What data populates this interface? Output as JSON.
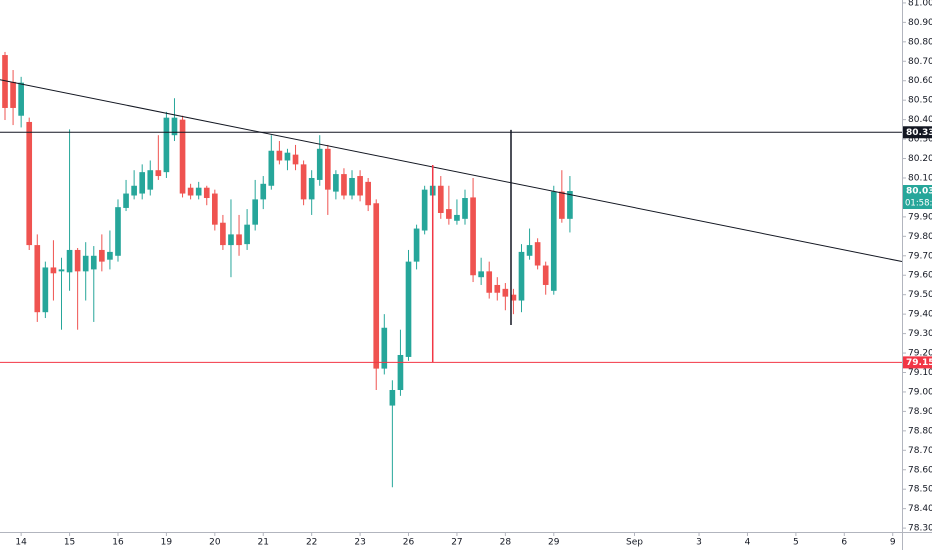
{
  "chart_data": {
    "type": "candlestick",
    "up_color": "#26a69a",
    "down_color": "#ef5350",
    "open": [
      80.732,
      80.594,
      80.42,
      80.388,
      79.755,
      79.41,
      79.64,
      79.62,
      79.615,
      79.73,
      79.62,
      79.63,
      79.73,
      79.68,
      79.7,
      79.946,
      80.01,
      80.02,
      80.04,
      80.14,
      80.13,
      80.32,
      80.4,
      80.05,
      80.01,
      80.05,
      80.02,
      79.87,
      79.755,
      79.81,
      79.76,
      79.86,
      79.99,
      80.06,
      80.24,
      80.19,
      80.22,
      80.17,
      79.99,
      80.09,
      80.25,
      80.03,
      80.12,
      80.01,
      80.11,
      80.08,
      79.97,
      79.12,
      78.93,
      79.01,
      79.18,
      79.67,
      79.83,
      80.01,
      80.06,
      79.94,
      79.88,
      79.89,
      80.0,
      79.59,
      79.62,
      79.55,
      79.53,
      79.5,
      79.47,
      79.7,
      79.77,
      79.65,
      79.52,
      80.03,
      79.89
    ],
    "close": [
      80.46,
      80.46,
      80.59,
      79.755,
      79.41,
      79.64,
      79.61,
      79.63,
      79.73,
      79.62,
      79.7,
      79.7,
      79.67,
      79.72,
      79.95,
      80.02,
      80.06,
      80.13,
      80.14,
      80.11,
      80.41,
      80.41,
      80.02,
      80.01,
      80.05,
      79.997,
      79.86,
      79.755,
      79.81,
      79.755,
      79.86,
      79.99,
      80.07,
      80.24,
      80.19,
      80.23,
      80.17,
      79.99,
      80.1,
      80.25,
      80.04,
      80.12,
      80.01,
      80.1,
      80.01,
      79.96,
      79.12,
      79.33,
      79.01,
      79.19,
      79.67,
      79.84,
      80.04,
      80.06,
      79.92,
      79.89,
      79.91,
      79.997,
      79.6,
      79.62,
      79.51,
      79.51,
      79.49,
      79.47,
      79.72,
      79.755,
      79.65,
      79.55,
      80.03,
      79.89,
      80.033
    ],
    "high": [
      80.748,
      80.655,
      80.62,
      80.41,
      79.81,
      79.67,
      79.78,
      79.69,
      80.35,
      79.74,
      79.77,
      79.75,
      79.81,
      79.83,
      79.99,
      80.09,
      80.14,
      80.17,
      80.19,
      80.32,
      80.44,
      80.51,
      80.42,
      80.07,
      80.08,
      80.06,
      80.04,
      79.91,
      79.99,
      79.91,
      79.94,
      80.09,
      80.11,
      80.32,
      80.29,
      80.25,
      80.27,
      80.19,
      80.14,
      80.32,
      80.27,
      80.14,
      80.15,
      80.14,
      80.14,
      80.1,
      79.99,
      79.4,
      79.06,
      79.32,
      79.73,
      79.86,
      80.06,
      80.16,
      80.11,
      80.06,
      79.99,
      80.04,
      80.1,
      79.69,
      79.67,
      79.59,
      79.56,
      79.53,
      79.76,
      79.84,
      79.79,
      79.67,
      80.06,
      80.14,
      80.11
    ],
    "low": [
      80.398,
      80.372,
      80.36,
      79.73,
      79.36,
      79.38,
      79.47,
      79.32,
      79.52,
      79.32,
      79.47,
      79.36,
      79.62,
      79.63,
      79.67,
      79.93,
      79.99,
      79.99,
      80.01,
      80.09,
      80.1,
      80.29,
      80.0,
      79.99,
      79.99,
      79.96,
      79.83,
      79.73,
      79.59,
      79.7,
      79.73,
      79.83,
      79.94,
      80.04,
      80.17,
      80.14,
      80.14,
      79.96,
      79.91,
      80.06,
      79.91,
      79.99,
      79.99,
      79.99,
      79.98,
      79.93,
      79.01,
      79.09,
      78.51,
      78.98,
      79.16,
      79.63,
      79.81,
      79.99,
      79.89,
      79.86,
      79.86,
      79.86,
      79.565,
      79.55,
      79.48,
      79.47,
      79.42,
      79.4,
      79.41,
      79.68,
      79.63,
      79.5,
      79.5,
      79.87,
      79.82
    ],
    "xlim": [
      -0.62,
      111.15
    ],
    "xticks": [
      {
        "value": 2,
        "label": "14"
      },
      {
        "value": 8,
        "label": "15"
      },
      {
        "value": 14,
        "label": "16"
      },
      {
        "value": 20,
        "label": "19"
      },
      {
        "value": 26,
        "label": "20"
      },
      {
        "value": 32,
        "label": "21"
      },
      {
        "value": 38,
        "label": "22"
      },
      {
        "value": 44,
        "label": "23"
      },
      {
        "value": 50,
        "label": "26"
      },
      {
        "value": 56,
        "label": "27"
      },
      {
        "value": 62,
        "label": "28"
      },
      {
        "value": 68,
        "label": "29"
      },
      {
        "value": 78,
        "label": "Sep"
      },
      {
        "value": 86,
        "label": "3"
      },
      {
        "value": 92,
        "label": "4"
      },
      {
        "value": 98,
        "label": "5"
      },
      {
        "value": 104,
        "label": "6"
      },
      {
        "value": 110,
        "label": "9"
      }
    ],
    "ylim": [
      78.28,
      81.015
    ],
    "yticks": [
      {
        "value": 78.3,
        "label": "78.300"
      },
      {
        "value": 78.4,
        "label": "78.400"
      },
      {
        "value": 78.5,
        "label": "78.500"
      },
      {
        "value": 78.6,
        "label": "78.600"
      },
      {
        "value": 78.7,
        "label": "78.700"
      },
      {
        "value": 78.8,
        "label": "78.800"
      },
      {
        "value": 78.9,
        "label": "78.900"
      },
      {
        "value": 79.0,
        "label": "79.000"
      },
      {
        "value": 79.1,
        "label": "79.100"
      },
      {
        "value": 79.2,
        "label": "79.200"
      },
      {
        "value": 79.3,
        "label": "79.300"
      },
      {
        "value": 79.4,
        "label": "79.400"
      },
      {
        "value": 79.5,
        "label": "79.500"
      },
      {
        "value": 79.6,
        "label": "79.600"
      },
      {
        "value": 79.7,
        "label": "79.700"
      },
      {
        "value": 79.8,
        "label": "79.800"
      },
      {
        "value": 79.9,
        "label": "79.900"
      },
      {
        "value": 80.0,
        "label": "80.000"
      },
      {
        "value": 80.1,
        "label": "80.100"
      },
      {
        "value": 80.2,
        "label": "80.200"
      },
      {
        "value": 80.3,
        "label": "80.300"
      },
      {
        "value": 80.4,
        "label": "80.400"
      },
      {
        "value": 80.5,
        "label": "80.500"
      },
      {
        "value": 80.6,
        "label": "80.600"
      },
      {
        "value": 80.7,
        "label": "80.700"
      },
      {
        "value": 80.8,
        "label": "80.800"
      },
      {
        "value": 80.9,
        "label": "80.900"
      },
      {
        "value": 81.0,
        "label": "81.000"
      }
    ],
    "trend_line": {
      "x": [
        0,
        110
      ],
      "y": [
        80.6,
        79.68
      ],
      "color": "#131722"
    },
    "levels": [
      {
        "value": 80.335,
        "color": "#131722"
      },
      {
        "value": 79.152,
        "color": "#f23645"
      }
    ],
    "vertical_lines": [
      {
        "x": 62.7,
        "y": [
          80.347,
          79.344
        ],
        "color": "#131722"
      },
      {
        "x": 53,
        "y": [
          80.167,
          79.152
        ],
        "color": "#f23645"
      }
    ],
    "last_price": 80.033,
    "countdown": "01:58:53"
  }
}
